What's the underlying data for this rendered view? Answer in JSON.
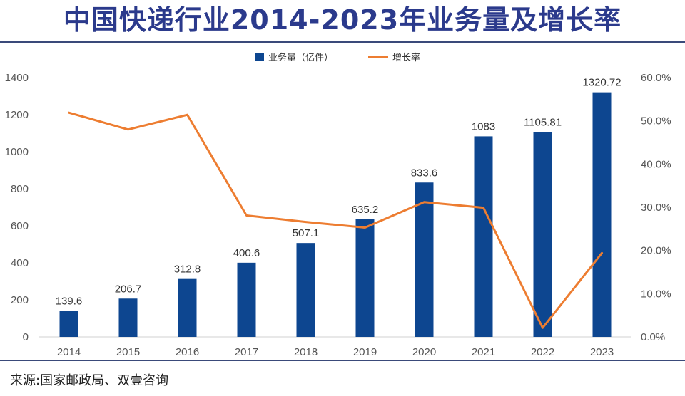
{
  "header": {
    "title": "中国快递行业2014-2023年业务量及增长率"
  },
  "footer": {
    "source": "来源:国家邮政局、双壹咨询"
  },
  "colors": {
    "bar": "#0d4690",
    "line": "#ed7d31",
    "title": "#2b3a8c",
    "rule": "#3a4a7a",
    "axis": "#d0d0d0"
  },
  "chart_data": {
    "type": "bar",
    "title": "中国快递行业2014-2023年业务量及增长率",
    "categories": [
      "2014",
      "2015",
      "2016",
      "2017",
      "2018",
      "2019",
      "2020",
      "2021",
      "2022",
      "2023"
    ],
    "series": [
      {
        "name": "业务量（亿件）",
        "kind": "bar",
        "axis": "left",
        "values": [
          139.6,
          206.7,
          312.8,
          400.6,
          507.1,
          635.2,
          833.6,
          1083,
          1105.81,
          1320.72
        ],
        "labels": [
          "139.6",
          "206.7",
          "312.8",
          "400.6",
          "507.1",
          "635.2",
          "833.6",
          "1083",
          "1105.81",
          "1320.72"
        ]
      },
      {
        "name": "增长率",
        "kind": "line",
        "axis": "right",
        "values": [
          51.9,
          48.0,
          51.4,
          28.1,
          26.6,
          25.3,
          31.2,
          29.9,
          2.1,
          19.4
        ]
      }
    ],
    "left_axis": {
      "min": 0,
      "max": 1400,
      "ticks": [
        0,
        200,
        400,
        600,
        800,
        1000,
        1200,
        1400
      ],
      "tick_labels": [
        "0",
        "200",
        "400",
        "600",
        "800",
        "1000",
        "1200",
        "1400"
      ]
    },
    "right_axis": {
      "min": 0,
      "max": 60,
      "ticks": [
        0,
        10,
        20,
        30,
        40,
        50,
        60
      ],
      "tick_labels": [
        "0.0%",
        "10.0%",
        "20.0%",
        "30.0%",
        "40.0%",
        "50.0%",
        "60.0%"
      ]
    },
    "legend": {
      "position": "top-center",
      "items": [
        "业务量（亿件）",
        "增长率"
      ]
    },
    "grid": false
  }
}
